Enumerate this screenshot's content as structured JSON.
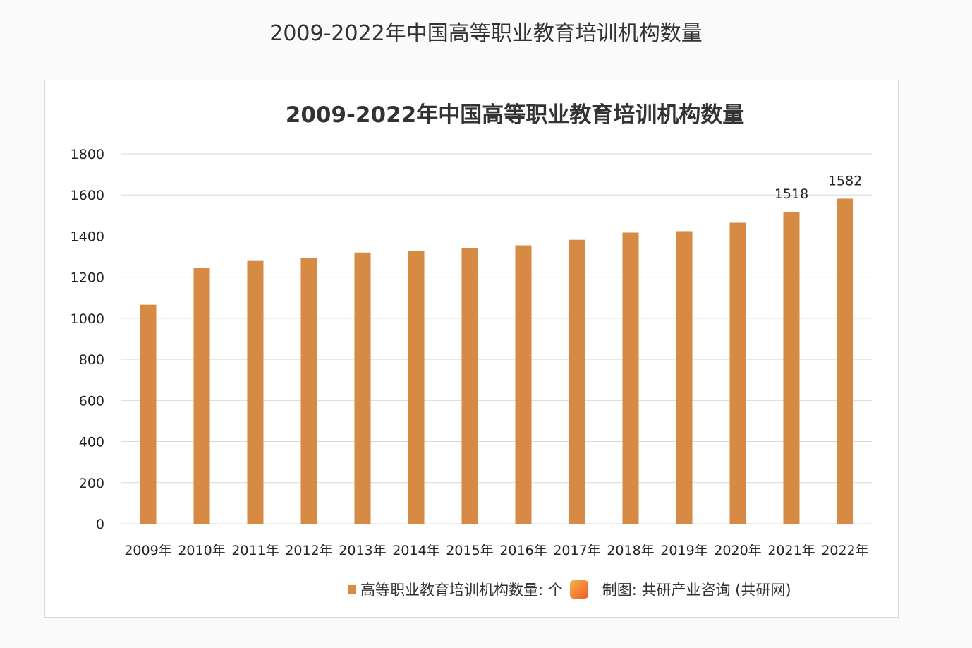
{
  "page_title": "2009-2022年中国高等职业教育培训机构数量",
  "chart_data": {
    "type": "bar",
    "title": "2009-2022年中国高等职业教育培训机构数量",
    "categories": [
      "2009年",
      "2010年",
      "2011年",
      "2012年",
      "2013年",
      "2014年",
      "2015年",
      "2016年",
      "2017年",
      "2018年",
      "2019年",
      "2020年",
      "2021年",
      "2022年"
    ],
    "series": [
      {
        "name": "高等职业教育培训机构数量: 个",
        "values": [
          1066,
          1245,
          1279,
          1293,
          1320,
          1327,
          1341,
          1355,
          1382,
          1417,
          1424,
          1465,
          1518,
          1582
        ],
        "color": "#d68a44"
      }
    ],
    "data_labels": {
      "12": "1518",
      "13": "1582"
    },
    "ylim": [
      0,
      1800
    ],
    "yticks": [
      "0",
      "200",
      "400",
      "600",
      "800",
      "1000",
      "1200",
      "1400",
      "1600",
      "1800"
    ],
    "grid": true,
    "legend": "bottom",
    "xlabel": "",
    "ylabel": ""
  },
  "legend": {
    "label": "高等职业教育培训机构数量: 个",
    "source": "制图: 共研产业咨询 (共研网)"
  }
}
